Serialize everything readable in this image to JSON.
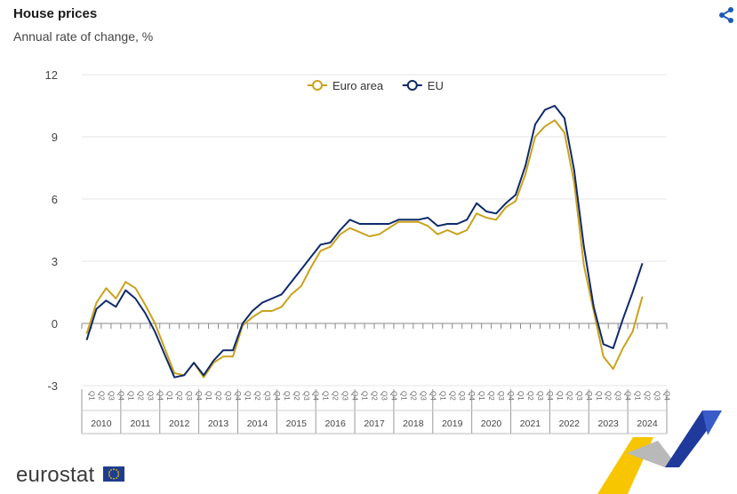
{
  "header": {
    "title": "House prices",
    "subtitle": "Annual rate of change, %"
  },
  "share": {
    "icon": "share-icon"
  },
  "brand": {
    "logo_text": "eurostat",
    "flag_icon": "eu-flag-icon"
  },
  "colors": {
    "euro_area": "#c9a21c",
    "eu": "#0e2a6b",
    "grid": "#e6e6e6",
    "axis_text": "#444444"
  },
  "chart_data": {
    "type": "line",
    "title": "House prices",
    "subtitle": "Annual rate of change, %",
    "legend_position": "top-center",
    "grid": true,
    "ylim": [
      -3,
      12
    ],
    "yticks": [
      12,
      9,
      6,
      3,
      0,
      -3
    ],
    "years": [
      "2010",
      "2011",
      "2012",
      "2013",
      "2014",
      "2015",
      "2016",
      "2017",
      "2018",
      "2019",
      "2020",
      "2021",
      "2022",
      "2023",
      "2024"
    ],
    "quarters": [
      "Q1",
      "Q2",
      "Q3",
      "Q4"
    ],
    "series": [
      {
        "name": "Euro area",
        "color": "#c9a21c",
        "values": [
          -0.5,
          1.0,
          1.7,
          1.2,
          2.0,
          1.7,
          0.9,
          0.0,
          -1.2,
          -2.4,
          -2.5,
          -1.9,
          -2.6,
          -1.9,
          -1.6,
          -1.6,
          -0.1,
          0.3,
          0.6,
          0.6,
          0.8,
          1.4,
          1.8,
          2.7,
          3.5,
          3.7,
          4.3,
          4.6,
          4.4,
          4.2,
          4.3,
          4.6,
          4.9,
          4.9,
          4.9,
          4.7,
          4.3,
          4.5,
          4.3,
          4.5,
          5.3,
          5.1,
          5.0,
          5.6,
          5.9,
          7.2,
          9.0,
          9.5,
          9.8,
          9.2,
          6.8,
          2.8,
          0.6,
          -1.6,
          -2.2,
          -1.2,
          -0.4,
          1.3
        ]
      },
      {
        "name": "EU",
        "color": "#0e2a6b",
        "values": [
          -0.8,
          0.7,
          1.1,
          0.8,
          1.6,
          1.2,
          0.5,
          -0.4,
          -1.5,
          -2.6,
          -2.5,
          -1.9,
          -2.5,
          -1.8,
          -1.3,
          -1.3,
          0.0,
          0.6,
          1.0,
          1.2,
          1.4,
          2.0,
          2.6,
          3.2,
          3.8,
          3.9,
          4.5,
          5.0,
          4.8,
          4.8,
          4.8,
          4.8,
          5.0,
          5.0,
          5.0,
          5.1,
          4.7,
          4.8,
          4.8,
          5.0,
          5.8,
          5.4,
          5.3,
          5.8,
          6.2,
          7.6,
          9.6,
          10.3,
          10.5,
          9.9,
          7.4,
          3.7,
          0.8,
          -1.0,
          -1.2,
          0.2,
          1.5,
          2.9
        ]
      }
    ]
  }
}
